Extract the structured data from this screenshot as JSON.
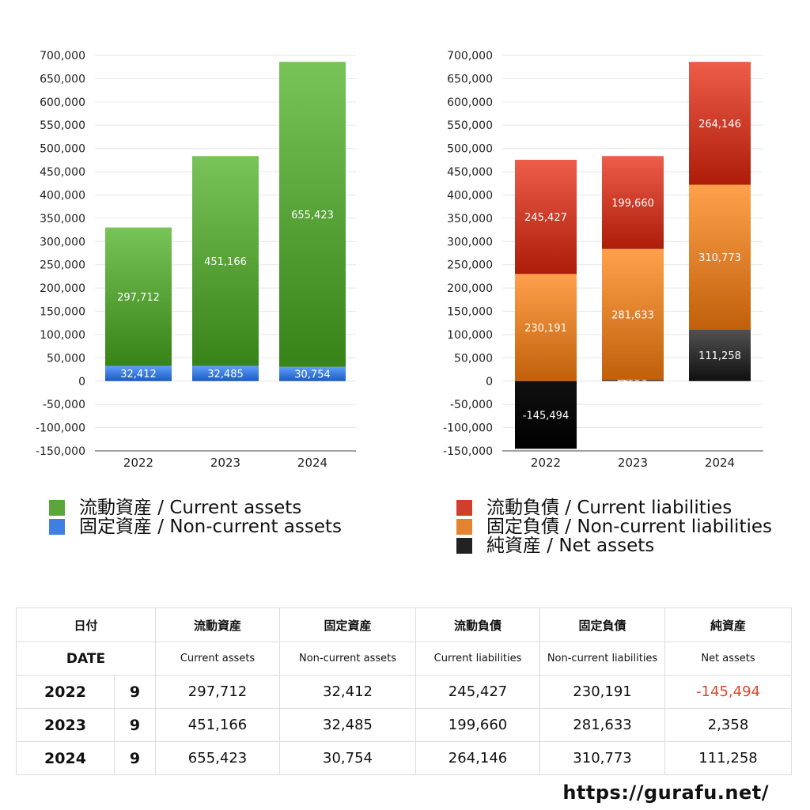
{
  "chart_data": [
    {
      "type": "bar",
      "stacked": true,
      "categories": [
        "2022",
        "2023",
        "2024"
      ],
      "series": [
        {
          "name": "固定資産 / Non-current assets",
          "values": [
            32412,
            32485,
            30754
          ],
          "color": "#3f7fe0"
        },
        {
          "name": "流動資産 / Current assets",
          "values": [
            297712,
            451166,
            655423
          ],
          "color": "#5aa63a"
        }
      ],
      "ylim": [
        -150000,
        700000
      ],
      "ytick_step": 50000,
      "grid": true,
      "legend_position": "bottom"
    },
    {
      "type": "bar",
      "stacked": true,
      "categories": [
        "2022",
        "2023",
        "2024"
      ],
      "series": [
        {
          "name": "純資産 / Net assets",
          "values": [
            -145494,
            2358,
            111258
          ],
          "color": "#333333"
        },
        {
          "name": "固定負債 / Non-current liabilities",
          "values": [
            230191,
            281633,
            310773
          ],
          "color": "#e4832e"
        },
        {
          "name": "流動負債 / Current liabilities",
          "values": [
            245427,
            199660,
            264146
          ],
          "color": "#cf3f2c"
        }
      ],
      "ylim": [
        -150000,
        700000
      ],
      "ytick_step": 50000,
      "grid": true,
      "legend_position": "bottom"
    }
  ],
  "legend_left": [
    {
      "label": "流動資産 / Current assets",
      "color": "#5aa63a"
    },
    {
      "label": "固定資産 / Non-current assets",
      "color": "#3f7fe0"
    }
  ],
  "legend_right": [
    {
      "label": "流動負債 / Current liabilities",
      "color": "#cf3f2c"
    },
    {
      "label": "固定負債 / Non-current liabilities",
      "color": "#e4832e"
    },
    {
      "label": "純資産 / Net assets",
      "color": "#222222"
    }
  ],
  "table": {
    "header_jp": {
      "date": "日付",
      "current_assets": "流動資産",
      "noncurrent_assets": "固定資産",
      "current_liabilities": "流動負債",
      "noncurrent_liabilities": "固定負債",
      "net_assets": "純資産"
    },
    "header_en": {
      "date": "DATE",
      "current_assets": "Current assets",
      "noncurrent_assets": "Non-current assets",
      "current_liabilities": "Current liabilities",
      "noncurrent_liabilities": "Non-current liabilities",
      "net_assets": "Net assets"
    },
    "rows": [
      {
        "year": "2022",
        "month": "9",
        "current_assets": "297,712",
        "noncurrent_assets": "32,412",
        "current_liabilities": "245,427",
        "noncurrent_liabilities": "230,191",
        "net_assets": "-145,494"
      },
      {
        "year": "2023",
        "month": "9",
        "current_assets": "451,166",
        "noncurrent_assets": "32,485",
        "current_liabilities": "199,660",
        "noncurrent_liabilities": "281,633",
        "net_assets": "2,358"
      },
      {
        "year": "2024",
        "month": "9",
        "current_assets": "655,423",
        "noncurrent_assets": "30,754",
        "current_liabilities": "264,146",
        "noncurrent_liabilities": "310,773",
        "net_assets": "111,258"
      }
    ]
  },
  "footer": {
    "url": "https://gurafu.net/"
  }
}
